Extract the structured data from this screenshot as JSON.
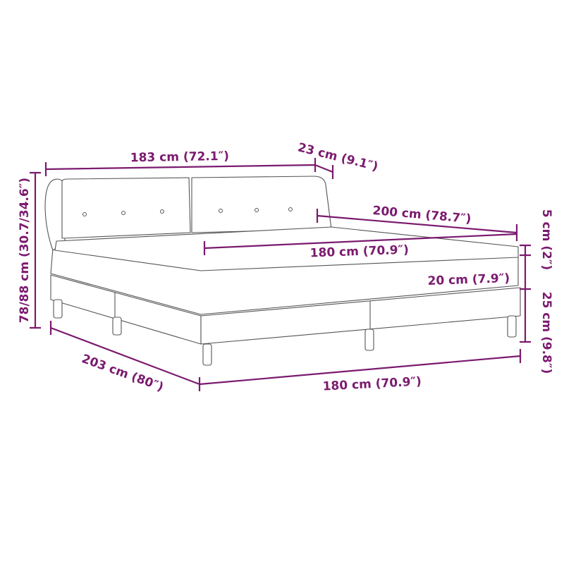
{
  "colors": {
    "dimension": "#7b1a6f",
    "outline": "#555555"
  },
  "dimensions": {
    "headboard_width": "183 cm (72.1″)",
    "headboard_depth": "23 cm (9.1″)",
    "mattress_length": "200 cm (78.7″)",
    "mattress_width": "180 cm (70.9″)",
    "topper_height": "5 cm (2″)",
    "mattress_height": "20 cm (7.9″)",
    "base_height": "25 cm (9.8″)",
    "total_height": "78/88 cm (30.7/34.6″)",
    "total_length": "203 cm (80″)",
    "total_width": "180 cm (70.9″)"
  }
}
